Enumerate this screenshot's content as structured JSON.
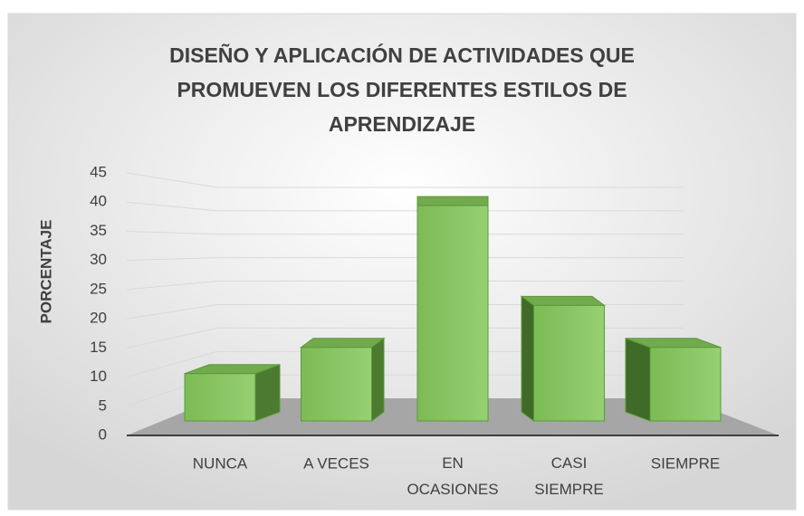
{
  "chart_data": {
    "type": "bar3d",
    "title": "DISEÑO Y APLICACIÓN DE ACTIVIDADES QUE PROMUEVEN LOS DIFERENTES ESTILOS DE APRENDIZAJE",
    "y_label": "PORCENTAJE",
    "categories": [
      "NUNCA",
      "A VECES",
      "EN OCASIONES",
      "CASI SIEMPRE",
      "SIEMPRE"
    ],
    "values": [
      9,
      14,
      41,
      22,
      14
    ],
    "color": "#8cc968",
    "ylim": [
      0,
      45
    ],
    "yticks": [
      0,
      5,
      10,
      15,
      20,
      25,
      30,
      35,
      40,
      45
    ],
    "grid": true
  }
}
